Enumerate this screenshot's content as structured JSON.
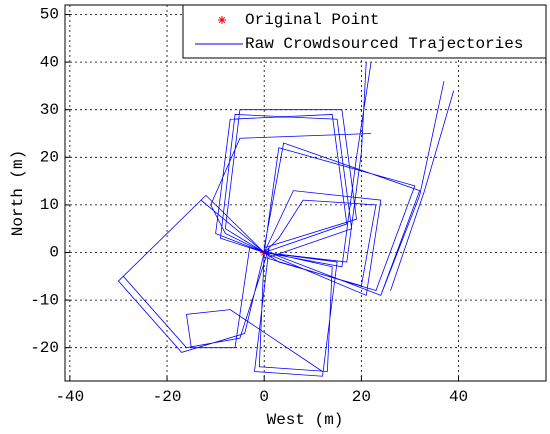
{
  "chart_data": {
    "type": "line",
    "xlabel": "West (m)",
    "ylabel": "North (m)",
    "xlim": [
      -41,
      58
    ],
    "ylim": [
      -27,
      52
    ],
    "xticks": [
      -40,
      -20,
      0,
      20,
      40
    ],
    "yticks": [
      -20,
      -10,
      0,
      10,
      20,
      30,
      40,
      50
    ],
    "grid": true,
    "legend": "upper right",
    "series": [
      {
        "name": "Original Point",
        "color": "#ff0000",
        "marker": "*",
        "x": [
          0
        ],
        "values": [
          0
        ]
      },
      {
        "name": "Raw Crowdsourced Trajectories",
        "color": "#0000ff",
        "x": [
          0,
          -10,
          -7,
          14,
          17,
          0,
          null,
          0,
          -9,
          -6,
          15,
          18,
          1,
          null,
          0,
          -8,
          -5,
          16,
          19,
          0,
          null,
          0,
          -13,
          -30,
          -17,
          -4,
          0,
          null,
          0,
          -12,
          -29,
          -16,
          -5,
          1,
          null,
          1,
          14,
          13,
          -1,
          0,
          null,
          0,
          15,
          12,
          -2,
          1,
          null,
          0,
          3,
          31,
          23,
          0,
          null,
          0,
          4,
          32,
          24,
          1,
          null,
          24,
          32,
          37,
          null,
          26,
          33,
          39,
          null,
          0,
          16,
          19,
          22,
          null,
          0,
          17,
          20,
          21,
          null,
          0,
          -3,
          -6,
          -15,
          -16,
          -7,
          12,
          null,
          0,
          3,
          20,
          23,
          8,
          3,
          0,
          null,
          0,
          -8,
          -11,
          -5,
          22,
          null,
          0,
          21,
          24,
          6,
          0
        ],
        "values": [
          0,
          4,
          28,
          29,
          6,
          0,
          null,
          0,
          3,
          29,
          28,
          5,
          -1,
          null,
          0,
          5,
          30,
          30,
          7,
          1,
          null,
          0,
          11,
          -6,
          -21,
          -17,
          0,
          null,
          0,
          12,
          -5,
          -20,
          -18,
          1,
          null,
          0,
          -3,
          -25,
          -24,
          0,
          null,
          0,
          -2,
          -26,
          -25,
          1,
          null,
          0,
          22,
          14,
          -8,
          -1,
          null,
          1,
          23,
          13,
          -9,
          0,
          null,
          -9,
          12,
          36,
          null,
          -8,
          13,
          34,
          null,
          0,
          -3,
          20,
          40,
          null,
          0,
          -2,
          21,
          40,
          null,
          0,
          1,
          -20,
          -20,
          -13,
          -12,
          -25,
          null,
          0,
          -2,
          -7,
          10,
          11,
          3,
          0,
          null,
          0,
          4,
          10,
          24,
          25,
          null,
          0,
          -9,
          11,
          13,
          0
        ]
      }
    ]
  }
}
